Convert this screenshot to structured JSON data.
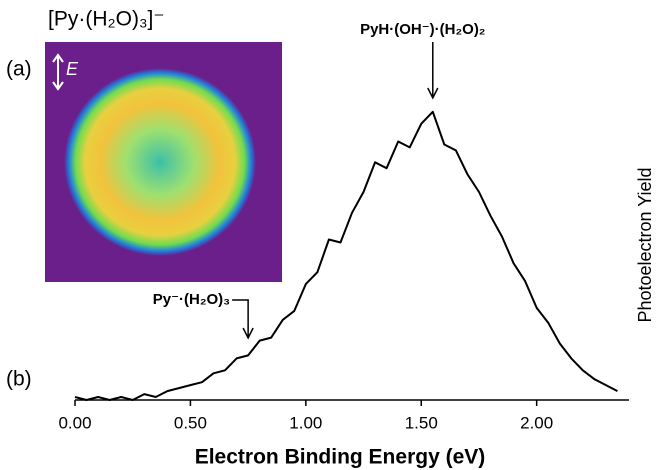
{
  "chart_data": {
    "type": "line",
    "x_label": "Electron Binding Energy (eV)",
    "y_label": "Photoelectron Yield",
    "panel_labels": [
      "(a)",
      "(b)"
    ],
    "inset_title": "[Py·(H₂O)₃]⁻",
    "inset_axis_label": "E",
    "color": "#000000",
    "x": [
      0.0,
      0.05,
      0.1,
      0.15,
      0.2,
      0.25,
      0.3,
      0.35,
      0.4,
      0.45,
      0.5,
      0.55,
      0.6,
      0.65,
      0.7,
      0.75,
      0.8,
      0.85,
      0.9,
      0.95,
      1.0,
      1.05,
      1.1,
      1.15,
      1.2,
      1.25,
      1.3,
      1.35,
      1.4,
      1.45,
      1.5,
      1.55,
      1.6,
      1.65,
      1.7,
      1.75,
      1.8,
      1.85,
      1.9,
      1.95,
      2.0,
      2.05,
      2.1,
      2.15,
      2.2,
      2.25,
      2.3,
      2.35
    ],
    "values": [
      0.01,
      0.0,
      0.01,
      0.0,
      0.01,
      0.0,
      0.02,
      0.01,
      0.03,
      0.04,
      0.05,
      0.06,
      0.09,
      0.1,
      0.14,
      0.15,
      0.2,
      0.21,
      0.27,
      0.3,
      0.39,
      0.43,
      0.54,
      0.53,
      0.63,
      0.7,
      0.8,
      0.78,
      0.87,
      0.85,
      0.93,
      0.97,
      0.86,
      0.84,
      0.76,
      0.7,
      0.62,
      0.55,
      0.46,
      0.4,
      0.31,
      0.26,
      0.19,
      0.14,
      0.1,
      0.07,
      0.05,
      0.03
    ],
    "xlim": [
      0,
      2.4
    ],
    "ylim": [
      0,
      1.05
    ],
    "xticks": [
      {
        "value": 0,
        "label": "0.00"
      },
      {
        "value": 0.5,
        "label": "0.50"
      },
      {
        "value": 1,
        "label": "1.00"
      },
      {
        "value": 1.5,
        "label": "1.50"
      },
      {
        "value": 2,
        "label": "2.00"
      }
    ],
    "annotations": [
      {
        "text": "PyH·(OH⁻)·(H₂O)₂",
        "x": 1.55
      },
      {
        "text": "Py⁻·(H₂O)₃",
        "x": 0.75
      }
    ]
  }
}
